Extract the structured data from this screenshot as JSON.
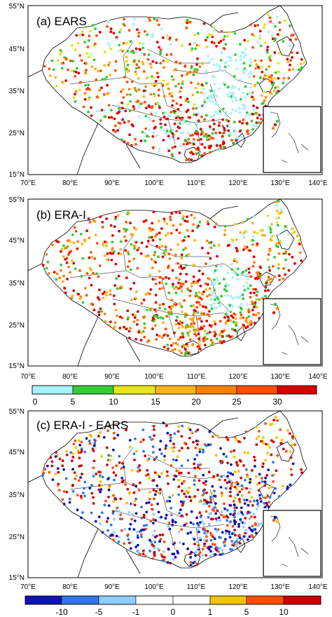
{
  "colors": {
    "ears_scale": [
      "#a6f2ff",
      "#33cc33",
      "#e6e619",
      "#ffb319",
      "#ff8000",
      "#ff4d00",
      "#d90000"
    ],
    "diff_scale": [
      "#0d14b3",
      "#3377e6",
      "#8ecfff",
      "#ffffff",
      "#ffffff",
      "#f2c400",
      "#ff4d00",
      "#cc0000"
    ],
    "boundary": "#000000",
    "inset_frame": "#000000"
  },
  "axes": {
    "lon_ticks": [
      "70°E",
      "80°E",
      "90°E",
      "100°E",
      "110°E",
      "120°E",
      "130°E",
      "140°E"
    ],
    "lat_ticks": [
      "15°N",
      "25°N",
      "35°N",
      "45°N",
      "55°N"
    ]
  },
  "panels": [
    {
      "id": "a",
      "title": "(a) EARS"
    },
    {
      "id": "b",
      "title": "(b) ERA-I"
    },
    {
      "id": "c",
      "title": "(c) ERA-I - EARS"
    }
  ],
  "colorbar_top": {
    "labels": [
      "0",
      "5",
      "10",
      "15",
      "20",
      "25",
      "30"
    ]
  },
  "colorbar_bottom": {
    "labels": [
      "-10",
      "-5",
      "-1",
      "0",
      "1",
      "5",
      "10"
    ]
  }
}
